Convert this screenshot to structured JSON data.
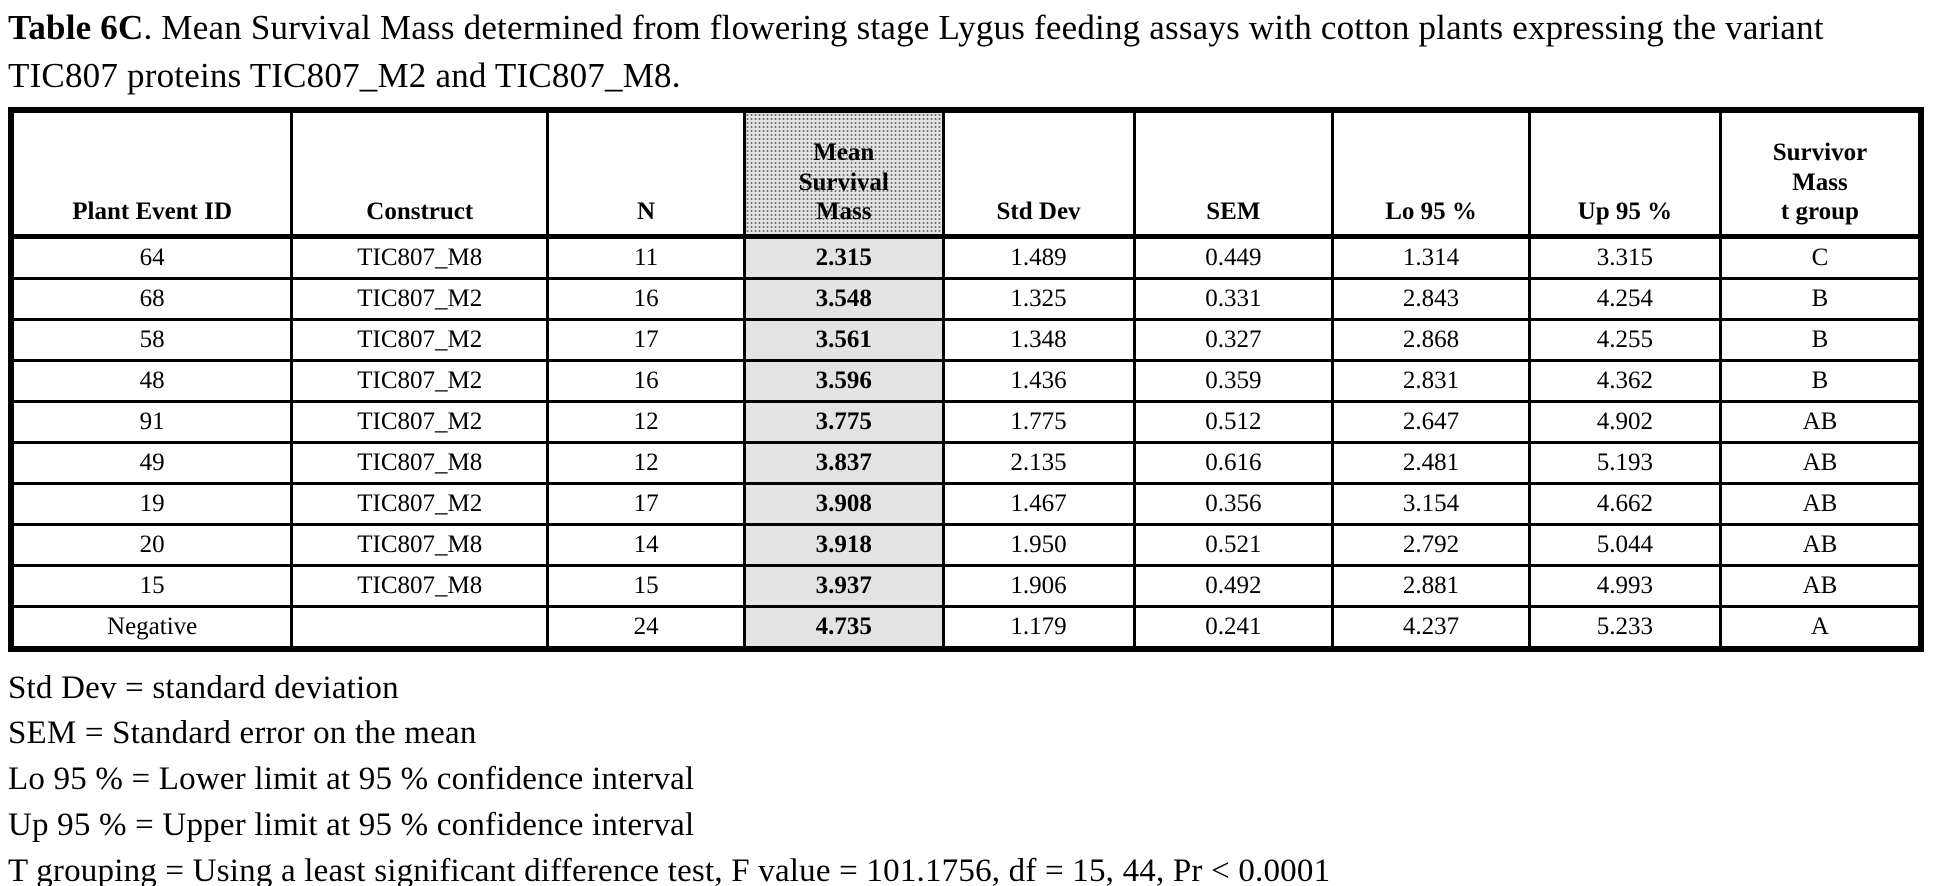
{
  "title": {
    "label_bold": "Table 6C",
    "label_rest": ".  Mean Survival Mass determined from flowering stage Lygus feeding assays with cotton plants expressing the variant TIC807 proteins TIC807_M2 and TIC807_M8."
  },
  "table": {
    "column_keys": [
      "plant-event-id",
      "construct",
      "n",
      "mean-survival-mass",
      "std-dev",
      "sem",
      "lo-95",
      "up-95",
      "t-group"
    ],
    "columns": [
      "Plant Event ID",
      "Construct",
      "N",
      "Mean\nSurvival\nMass",
      "Std Dev",
      "SEM",
      "Lo 95 %",
      "Up 95 %",
      "Survivor\nMass\nt group"
    ],
    "rows": [
      [
        "64",
        "TIC807_M8",
        "11",
        "2.315",
        "1.489",
        "0.449",
        "1.314",
        "3.315",
        "C"
      ],
      [
        "68",
        "TIC807_M2",
        "16",
        "3.548",
        "1.325",
        "0.331",
        "2.843",
        "4.254",
        "B"
      ],
      [
        "58",
        "TIC807_M2",
        "17",
        "3.561",
        "1.348",
        "0.327",
        "2.868",
        "4.255",
        "B"
      ],
      [
        "48",
        "TIC807_M2",
        "16",
        "3.596",
        "1.436",
        "0.359",
        "2.831",
        "4.362",
        "B"
      ],
      [
        "91",
        "TIC807_M2",
        "12",
        "3.775",
        "1.775",
        "0.512",
        "2.647",
        "4.902",
        "AB"
      ],
      [
        "49",
        "TIC807_M8",
        "12",
        "3.837",
        "2.135",
        "0.616",
        "2.481",
        "5.193",
        "AB"
      ],
      [
        "19",
        "TIC807_M2",
        "17",
        "3.908",
        "1.467",
        "0.356",
        "3.154",
        "4.662",
        "AB"
      ],
      [
        "20",
        "TIC807_M8",
        "14",
        "3.918",
        "1.950",
        "0.521",
        "2.792",
        "5.044",
        "AB"
      ],
      [
        "15",
        "TIC807_M8",
        "15",
        "3.937",
        "1.906",
        "0.492",
        "2.881",
        "4.993",
        "AB"
      ],
      [
        "Negative",
        "",
        "24",
        "4.735",
        "1.179",
        "0.241",
        "4.237",
        "5.233",
        "A"
      ]
    ],
    "highlight_column_index": 3,
    "highlight_color": "#e3e3e3"
  },
  "footnotes": [
    "Std Dev = standard deviation",
    "SEM = Standard error on the mean",
    "Lo 95 % = Lower limit at 95 % confidence interval",
    "Up 95 % = Upper limit at 95 % confidence interval",
    "T grouping = Using a least significant difference test, F value = 101.1756, df = 15, 44, Pr < 0.0001"
  ]
}
